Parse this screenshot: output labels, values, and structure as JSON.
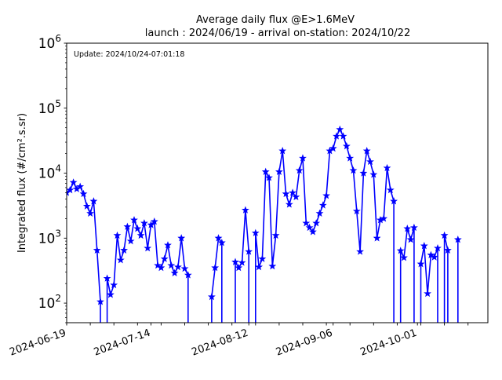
{
  "chart_data": {
    "type": "line",
    "title": "Average daily flux @E>1.6MeV",
    "subtitle": "launch : 2024/06/19 - arrival on-station: 2024/10/22",
    "annotation": "Update: 2024/10/24-07:01:18",
    "ylabel": "Integrated flux (#/cm².s.sr)",
    "xlabel": "",
    "yscale": "log",
    "ylim": [
      50,
      1000000
    ],
    "xlim": [
      "2024-06-19",
      "2024-10-22"
    ],
    "grid": false,
    "legend": "none",
    "xticks": [
      "2024-06-19",
      "2024-07-14",
      "2024-08-12",
      "2024-09-06",
      "2024-10-01"
    ],
    "yticks": [
      {
        "value": 100,
        "base": "10",
        "exp": "2"
      },
      {
        "value": 1000,
        "base": "10",
        "exp": "3"
      },
      {
        "value": 10000,
        "base": "10",
        "exp": "4"
      },
      {
        "value": 100000,
        "base": "10",
        "exp": "5"
      },
      {
        "value": 1000000,
        "base": "10",
        "exp": "6"
      }
    ],
    "series_color": "#0000ff",
    "series": [
      {
        "x": [
          "2024-06-19",
          "2024-06-20",
          "2024-06-21",
          "2024-06-22",
          "2024-06-23",
          "2024-06-24",
          "2024-06-25",
          "2024-06-26",
          "2024-06-27",
          "2024-06-28",
          "2024-06-29",
          "2024-06-30",
          "2024-07-01",
          "2024-07-02",
          "2024-07-03",
          "2024-07-04",
          "2024-07-05",
          "2024-07-06",
          "2024-07-07",
          "2024-07-08",
          "2024-07-09",
          "2024-07-10",
          "2024-07-11",
          "2024-07-12",
          "2024-07-13",
          "2024-07-14",
          "2024-07-15",
          "2024-07-16",
          "2024-07-17",
          "2024-07-18",
          "2024-07-19",
          "2024-07-20",
          "2024-07-21",
          "2024-07-22",
          "2024-07-23",
          "2024-07-24",
          "2024-07-25",
          "2024-07-26",
          "2024-07-27",
          "2024-07-28",
          "2024-07-29",
          "2024-07-30",
          "2024-07-31",
          "2024-08-01",
          "2024-08-02",
          "2024-08-03",
          "2024-08-04",
          "2024-08-05",
          "2024-08-06",
          "2024-08-07",
          "2024-08-08",
          "2024-08-09",
          "2024-08-10",
          "2024-08-11",
          "2024-08-12",
          "2024-08-13",
          "2024-08-14",
          "2024-08-15",
          "2024-08-16",
          "2024-08-17",
          "2024-08-18",
          "2024-08-19",
          "2024-08-20",
          "2024-08-21",
          "2024-08-22",
          "2024-08-23",
          "2024-08-24",
          "2024-08-25",
          "2024-08-26",
          "2024-08-27",
          "2024-08-28",
          "2024-08-29",
          "2024-08-30",
          "2024-08-31",
          "2024-09-01",
          "2024-09-02",
          "2024-09-03",
          "2024-09-04",
          "2024-09-05",
          "2024-09-06",
          "2024-09-07",
          "2024-09-08",
          "2024-09-09",
          "2024-09-10",
          "2024-09-11",
          "2024-09-12",
          "2024-09-13",
          "2024-09-14",
          "2024-09-15",
          "2024-09-16",
          "2024-09-17",
          "2024-09-18",
          "2024-09-19",
          "2024-09-20",
          "2024-09-21",
          "2024-09-22",
          "2024-09-23",
          "2024-09-24",
          "2024-09-25",
          "2024-09-26",
          "2024-09-27",
          "2024-09-28",
          "2024-09-29",
          "2024-09-30",
          "2024-10-01",
          "2024-10-02",
          "2024-10-03",
          "2024-10-04",
          "2024-10-05",
          "2024-10-06",
          "2024-10-07",
          "2024-10-08",
          "2024-10-09",
          "2024-10-10",
          "2024-10-11",
          "2024-10-12",
          "2024-10-13"
        ],
        "y": [
          5000,
          5500,
          7200,
          5700,
          6200,
          4800,
          3100,
          2400,
          3700,
          650,
          105,
          null,
          240,
          135,
          190,
          1100,
          460,
          650,
          1500,
          900,
          1900,
          1400,
          1100,
          1700,
          700,
          1600,
          1800,
          380,
          350,
          480,
          780,
          380,
          290,
          360,
          1000,
          340,
          270,
          null,
          null,
          null,
          null,
          null,
          null,
          125,
          350,
          1000,
          850,
          null,
          null,
          null,
          430,
          350,
          420,
          2700,
          620,
          null,
          1200,
          360,
          480,
          10500,
          8500,
          370,
          1100,
          10500,
          22000,
          4800,
          3300,
          5000,
          4300,
          11000,
          17000,
          1700,
          1450,
          1250,
          1700,
          2400,
          3200,
          4500,
          22000,
          24000,
          37000,
          47000,
          37000,
          26000,
          17000,
          11000,
          2600,
          620,
          10000,
          22000,
          15000,
          9500,
          1000,
          1900,
          2000,
          12000,
          5500,
          3700,
          null,
          640,
          500,
          1400,
          950,
          1450,
          null,
          400,
          760,
          140,
          550,
          510,
          700,
          null,
          1100,
          650,
          null,
          null,
          950
        ]
      }
    ]
  }
}
